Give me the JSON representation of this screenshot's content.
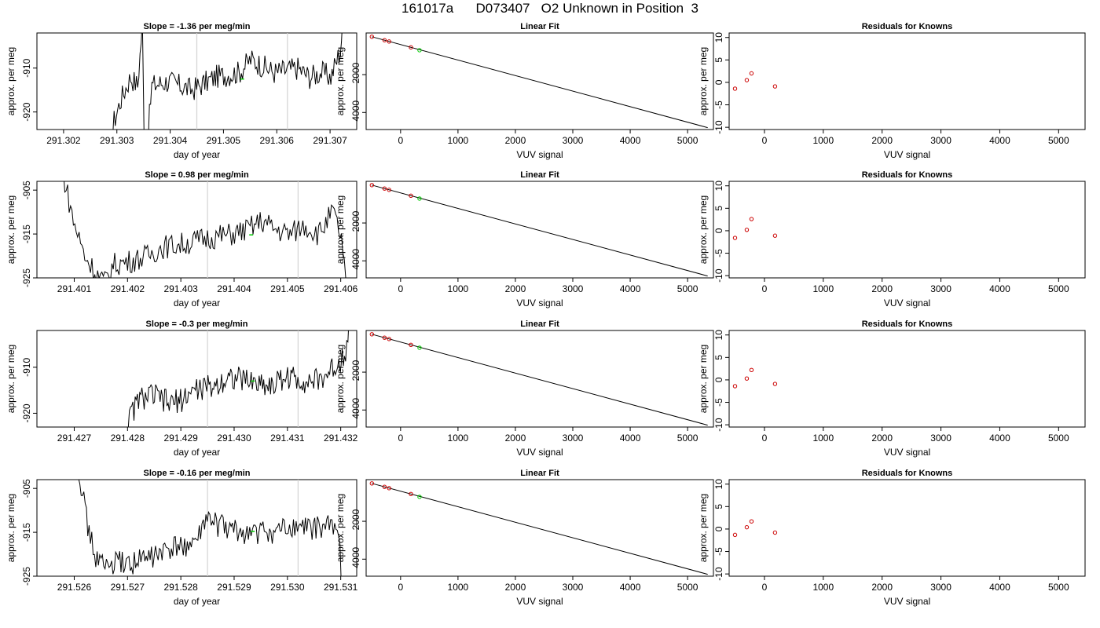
{
  "title": "161017a      D073407   O2 Unknown in Position  3",
  "colors": {
    "trace": "#000000",
    "marker": "#00cc00",
    "vline": "#d3d3d3",
    "known": "#cc0000",
    "fitline": "#000000"
  },
  "chart_data": [
    {
      "type": "line",
      "panel": "trace",
      "row": 1,
      "title": "Slope =  -1.36  per meg/min",
      "xlabel": "day of year",
      "ylabel": "approx. per meg",
      "xlim": [
        291.3015,
        291.3075
      ],
      "ylim": [
        -924,
        -902
      ],
      "xticks": [
        291.302,
        291.303,
        291.304,
        291.305,
        291.306,
        291.307
      ],
      "xticklabels": [
        "291.302",
        "291.303",
        "291.304",
        "291.305",
        "291.306",
        "291.307"
      ],
      "yticks": [
        -920,
        -910
      ],
      "yticklabels": [
        "-920",
        "-910"
      ],
      "vlines": [
        291.3045,
        291.3062
      ],
      "marker": {
        "x": 291.30535,
        "y": -912.5
      },
      "trace": {
        "x_start": 291.30286,
        "x_end": 291.30728,
        "anchors": [
          [
            0,
            -930
          ],
          [
            0.02,
            -922
          ],
          [
            0.05,
            -917
          ],
          [
            0.09,
            -912
          ],
          [
            0.12,
            -914
          ],
          [
            0.14,
            -900
          ],
          [
            0.15,
            -935
          ],
          [
            0.18,
            -914
          ],
          [
            0.25,
            -913
          ],
          [
            0.3,
            -914
          ],
          [
            0.35,
            -915
          ],
          [
            0.45,
            -912
          ],
          [
            0.55,
            -911
          ],
          [
            0.6,
            -908
          ],
          [
            0.7,
            -911
          ],
          [
            0.8,
            -910
          ],
          [
            0.85,
            -912
          ],
          [
            0.9,
            -911
          ],
          [
            0.94,
            -912
          ],
          [
            0.98,
            -906
          ],
          [
            1.0,
            -895
          ]
        ]
      }
    },
    {
      "type": "line",
      "panel": "fit",
      "row": 1,
      "title": "Linear Fit",
      "xlabel": "VUV signal",
      "ylabel": "approx. per meg",
      "xlim": [
        -600,
        5450
      ],
      "ylim": [
        -4900,
        200
      ],
      "xticks": [
        0,
        1000,
        2000,
        3000,
        4000,
        5000
      ],
      "xticklabels": [
        "0",
        "1000",
        "2000",
        "3000",
        "4000",
        "5000"
      ],
      "yticks": [
        -2000,
        -4000
      ],
      "yticklabels": [
        "-2000",
        "-4000"
      ],
      "line": {
        "x": [
          -500,
          5350
        ],
        "y": [
          0,
          -4800
        ]
      },
      "knowns": {
        "x": [
          -500,
          -280,
          -200,
          180
        ],
        "y": [
          0,
          -180,
          -250,
          -560
        ]
      },
      "unknown": {
        "x": 330,
        "y": -710
      }
    },
    {
      "type": "scatter",
      "panel": "resid",
      "row": 1,
      "title": "Residuals for Knowns",
      "xlabel": "VUV signal",
      "ylabel": "approx. per meg",
      "xlim": [
        -600,
        5450
      ],
      "ylim": [
        -10.5,
        11
      ],
      "xticks": [
        0,
        1000,
        2000,
        3000,
        4000,
        5000
      ],
      "xticklabels": [
        "0",
        "1000",
        "2000",
        "3000",
        "4000",
        "5000"
      ],
      "yticks": [
        -10,
        -5,
        0,
        5,
        10
      ],
      "yticklabels": [
        "-10",
        "-5",
        "0",
        "5",
        "10"
      ],
      "points": {
        "x": [
          -500,
          -300,
          -220,
          180
        ],
        "y": [
          -1.4,
          0.5,
          2.0,
          -0.9
        ]
      }
    },
    {
      "type": "line",
      "panel": "trace",
      "row": 2,
      "title": "Slope =  0.98  per meg/min",
      "xlabel": "day of year",
      "ylabel": "approx. per meg",
      "xlim": [
        291.4003,
        291.4063
      ],
      "ylim": [
        -925,
        -903
      ],
      "xticks": [
        291.401,
        291.402,
        291.403,
        291.404,
        291.405,
        291.406
      ],
      "xticklabels": [
        "291.401",
        "291.402",
        "291.403",
        "291.404",
        "291.405",
        "291.406"
      ],
      "yticks": [
        -925,
        -915,
        -905
      ],
      "yticklabels": [
        "-925",
        "-915",
        "-905"
      ],
      "vlines": [
        291.4035,
        291.4052
      ],
      "marker": {
        "x": 291.40432,
        "y": -915.2
      },
      "trace": {
        "x_start": 291.40077,
        "x_end": 291.40612,
        "anchors": [
          [
            0,
            -900
          ],
          [
            0.04,
            -912
          ],
          [
            0.08,
            -920
          ],
          [
            0.12,
            -924
          ],
          [
            0.15,
            -926
          ],
          [
            0.18,
            -922
          ],
          [
            0.25,
            -921
          ],
          [
            0.3,
            -920
          ],
          [
            0.35,
            -918
          ],
          [
            0.45,
            -917
          ],
          [
            0.5,
            -916
          ],
          [
            0.6,
            -915
          ],
          [
            0.65,
            -914
          ],
          [
            0.7,
            -912
          ],
          [
            0.75,
            -914
          ],
          [
            0.8,
            -915
          ],
          [
            0.85,
            -913
          ],
          [
            0.9,
            -915
          ],
          [
            0.95,
            -910
          ],
          [
            0.98,
            -916
          ],
          [
            1.0,
            -930
          ]
        ]
      }
    },
    {
      "type": "line",
      "panel": "fit",
      "row": 2,
      "title": "Linear Fit",
      "xlabel": "VUV signal",
      "ylabel": "approx. per meg",
      "xlim": [
        -600,
        5450
      ],
      "ylim": [
        -4900,
        200
      ],
      "xticks": [
        0,
        1000,
        2000,
        3000,
        4000,
        5000
      ],
      "xticklabels": [
        "0",
        "1000",
        "2000",
        "3000",
        "4000",
        "5000"
      ],
      "yticks": [
        -2000,
        -4000
      ],
      "yticklabels": [
        "-2000",
        "-4000"
      ],
      "line": {
        "x": [
          -500,
          5350
        ],
        "y": [
          0,
          -4800
        ]
      },
      "knowns": {
        "x": [
          -500,
          -280,
          -200,
          180
        ],
        "y": [
          0,
          -180,
          -250,
          -560
        ]
      },
      "unknown": {
        "x": 330,
        "y": -710
      }
    },
    {
      "type": "scatter",
      "panel": "resid",
      "row": 2,
      "title": "Residuals for Knowns",
      "xlabel": "VUV signal",
      "ylabel": "approx. per meg",
      "xlim": [
        -600,
        5450
      ],
      "ylim": [
        -10.5,
        11
      ],
      "xticks": [
        0,
        1000,
        2000,
        3000,
        4000,
        5000
      ],
      "xticklabels": [
        "0",
        "1000",
        "2000",
        "3000",
        "4000",
        "5000"
      ],
      "yticks": [
        -10,
        -5,
        0,
        5,
        10
      ],
      "yticklabels": [
        "-10",
        "-5",
        "0",
        "5",
        "10"
      ],
      "points": {
        "x": [
          -500,
          -300,
          -220,
          180
        ],
        "y": [
          -1.6,
          0.2,
          2.6,
          -1.1
        ]
      }
    },
    {
      "type": "line",
      "panel": "trace",
      "row": 3,
      "title": "Slope =  -0.3  per meg/min",
      "xlabel": "day of year",
      "ylabel": "approx. per meg",
      "xlim": [
        291.4263,
        291.4323
      ],
      "ylim": [
        -923,
        -902
      ],
      "xticks": [
        291.427,
        291.428,
        291.429,
        291.43,
        291.431,
        291.432
      ],
      "xticklabels": [
        "291.427",
        "291.428",
        "291.429",
        "291.430",
        "291.431",
        "291.432"
      ],
      "yticks": [
        -920,
        -910
      ],
      "yticklabels": [
        "-920",
        "-910"
      ],
      "vlines": [
        291.4295,
        291.4312
      ],
      "marker": {
        "x": 291.43035,
        "y": -913.0
      },
      "trace": {
        "x_start": 291.42795,
        "x_end": 291.43222,
        "anchors": [
          [
            0,
            -925
          ],
          [
            0.03,
            -920
          ],
          [
            0.06,
            -917
          ],
          [
            0.12,
            -916
          ],
          [
            0.2,
            -918
          ],
          [
            0.25,
            -917
          ],
          [
            0.3,
            -915
          ],
          [
            0.4,
            -914
          ],
          [
            0.45,
            -912
          ],
          [
            0.55,
            -913
          ],
          [
            0.65,
            -914
          ],
          [
            0.7,
            -912
          ],
          [
            0.8,
            -913
          ],
          [
            0.85,
            -913
          ],
          [
            0.9,
            -911
          ],
          [
            0.94,
            -909
          ],
          [
            0.97,
            -906
          ],
          [
            1.0,
            -895
          ]
        ]
      }
    },
    {
      "type": "line",
      "panel": "fit",
      "row": 3,
      "title": "Linear Fit",
      "xlabel": "VUV signal",
      "ylabel": "approx. per meg",
      "xlim": [
        -600,
        5450
      ],
      "ylim": [
        -4900,
        200
      ],
      "xticks": [
        0,
        1000,
        2000,
        3000,
        4000,
        5000
      ],
      "xticklabels": [
        "0",
        "1000",
        "2000",
        "3000",
        "4000",
        "5000"
      ],
      "yticks": [
        -2000,
        -4000
      ],
      "yticklabels": [
        "-2000",
        "-4000"
      ],
      "line": {
        "x": [
          -500,
          5350
        ],
        "y": [
          0,
          -4800
        ]
      },
      "knowns": {
        "x": [
          -500,
          -280,
          -200,
          180
        ],
        "y": [
          0,
          -180,
          -250,
          -560
        ]
      },
      "unknown": {
        "x": 330,
        "y": -710
      }
    },
    {
      "type": "scatter",
      "panel": "resid",
      "row": 3,
      "title": "Residuals for Knowns",
      "xlabel": "VUV signal",
      "ylabel": "approx. per meg",
      "xlim": [
        -600,
        5450
      ],
      "ylim": [
        -10.5,
        11
      ],
      "xticks": [
        0,
        1000,
        2000,
        3000,
        4000,
        5000
      ],
      "xticklabels": [
        "0",
        "1000",
        "2000",
        "3000",
        "4000",
        "5000"
      ],
      "yticks": [
        -10,
        -5,
        0,
        5,
        10
      ],
      "yticklabels": [
        "-10",
        "-5",
        "0",
        "5",
        "10"
      ],
      "points": {
        "x": [
          -500,
          -300,
          -220,
          180
        ],
        "y": [
          -1.4,
          0.3,
          2.2,
          -0.9
        ]
      }
    },
    {
      "type": "line",
      "panel": "trace",
      "row": 4,
      "title": "Slope =  -0.16  per meg/min",
      "xlabel": "day of year",
      "ylabel": "approx. per meg",
      "xlim": [
        291.5253,
        291.5313
      ],
      "ylim": [
        -925,
        -903
      ],
      "xticks": [
        291.526,
        291.527,
        291.528,
        291.529,
        291.53,
        291.531
      ],
      "xticklabels": [
        "291.526",
        "291.527",
        "291.528",
        "291.529",
        "291.530",
        "291.531"
      ],
      "yticks": [
        -925,
        -915,
        -905
      ],
      "yticklabels": [
        "-925",
        "-915",
        "-905"
      ],
      "vlines": [
        291.5285,
        291.5302
      ],
      "marker": {
        "x": 291.52935,
        "y": -914.8
      },
      "trace": {
        "x_start": 291.52608,
        "x_end": 291.53106,
        "anchors": [
          [
            0,
            -900
          ],
          [
            0.03,
            -912
          ],
          [
            0.06,
            -920
          ],
          [
            0.1,
            -923
          ],
          [
            0.15,
            -922
          ],
          [
            0.2,
            -922
          ],
          [
            0.3,
            -920
          ],
          [
            0.4,
            -918
          ],
          [
            0.45,
            -917
          ],
          [
            0.48,
            -912
          ],
          [
            0.55,
            -914
          ],
          [
            0.6,
            -915
          ],
          [
            0.7,
            -915
          ],
          [
            0.75,
            -915
          ],
          [
            0.8,
            -914
          ],
          [
            0.85,
            -914
          ],
          [
            0.9,
            -914
          ],
          [
            0.95,
            -913
          ],
          [
            0.98,
            -916
          ],
          [
            1.0,
            -932
          ]
        ]
      }
    },
    {
      "type": "line",
      "panel": "fit",
      "row": 4,
      "title": "Linear Fit",
      "xlabel": "VUV signal",
      "ylabel": "approx. per meg",
      "xlim": [
        -600,
        5450
      ],
      "ylim": [
        -4900,
        200
      ],
      "xticks": [
        0,
        1000,
        2000,
        3000,
        4000,
        5000
      ],
      "xticklabels": [
        "0",
        "1000",
        "2000",
        "3000",
        "4000",
        "5000"
      ],
      "yticks": [
        -2000,
        -4000
      ],
      "yticklabels": [
        "-2000",
        "-4000"
      ],
      "line": {
        "x": [
          -500,
          5350
        ],
        "y": [
          0,
          -4800
        ]
      },
      "knowns": {
        "x": [
          -500,
          -280,
          -200,
          180
        ],
        "y": [
          0,
          -180,
          -250,
          -560
        ]
      },
      "unknown": {
        "x": 330,
        "y": -710
      }
    },
    {
      "type": "scatter",
      "panel": "resid",
      "row": 4,
      "title": "Residuals for Knowns",
      "xlabel": "VUV signal",
      "ylabel": "approx. per meg",
      "xlim": [
        -600,
        5450
      ],
      "ylim": [
        -10.5,
        11
      ],
      "xticks": [
        0,
        1000,
        2000,
        3000,
        4000,
        5000
      ],
      "xticklabels": [
        "0",
        "1000",
        "2000",
        "3000",
        "4000",
        "5000"
      ],
      "yticks": [
        -10,
        -5,
        0,
        5,
        10
      ],
      "yticklabels": [
        "-10",
        "-5",
        "0",
        "5",
        "10"
      ],
      "points": {
        "x": [
          -500,
          -300,
          -220,
          180
        ],
        "y": [
          -1.3,
          0.4,
          1.7,
          -0.8
        ]
      }
    }
  ]
}
